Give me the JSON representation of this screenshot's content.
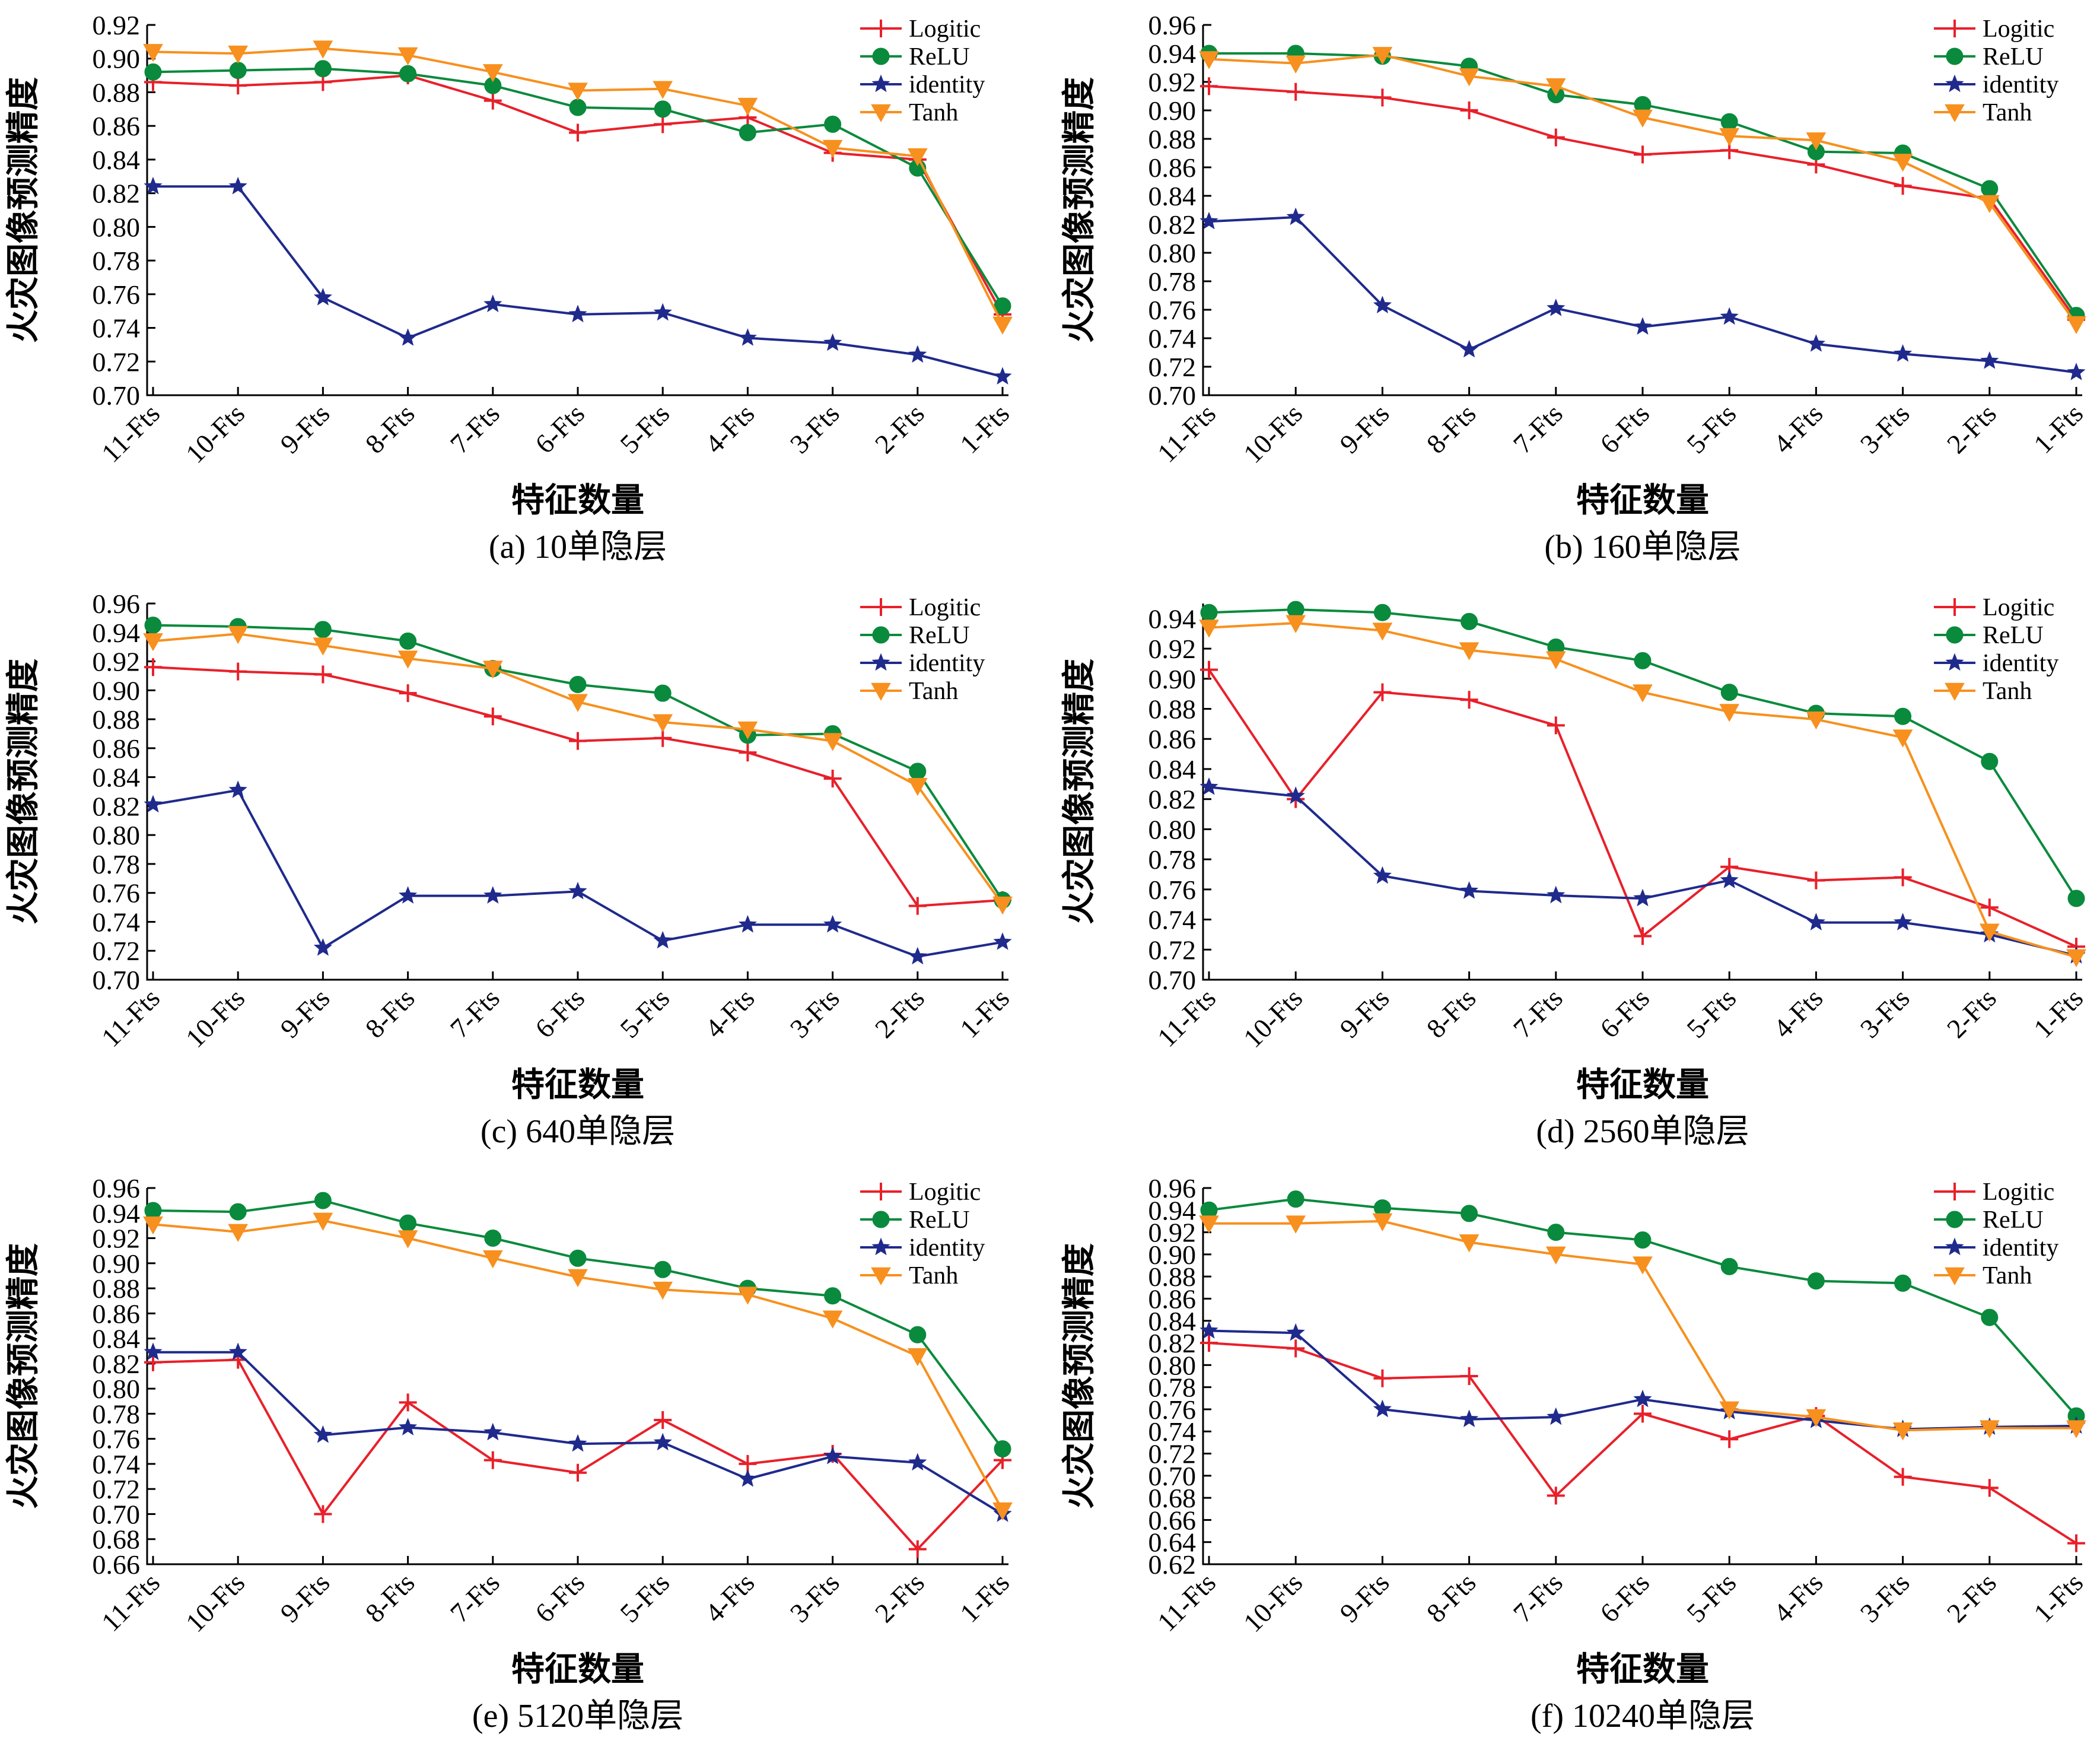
{
  "chart_data": [
    {
      "type": "line",
      "caption": "(a) 10单隐层",
      "xlabel": "特征数量",
      "ylabel": "火灾图像预测精度",
      "categories": [
        "11-Fts",
        "10-Fts",
        "9-Fts",
        "8-Fts",
        "7-Fts",
        "6-Fts",
        "5-Fts",
        "4-Fts",
        "3-Fts",
        "2-Fts",
        "1-Fts"
      ],
      "ylim": [
        0.7,
        0.92
      ],
      "yticks": [
        "0.70",
        "0.72",
        "0.74",
        "0.76",
        "0.78",
        "0.80",
        "0.82",
        "0.84",
        "0.86",
        "0.88",
        "0.90",
        "0.92"
      ],
      "legend_position": "top-right",
      "series": [
        {
          "name": "Logitic",
          "color": "#e8202a",
          "marker": "plus",
          "values": [
            0.886,
            0.884,
            0.886,
            0.89,
            0.875,
            0.856,
            0.861,
            0.865,
            0.844,
            0.84,
            0.748
          ]
        },
        {
          "name": "ReLU",
          "color": "#0a8a3c",
          "marker": "circle",
          "values": [
            0.892,
            0.893,
            0.894,
            0.891,
            0.884,
            0.871,
            0.87,
            0.856,
            0.861,
            0.835,
            0.753
          ]
        },
        {
          "name": "identity",
          "color": "#1f2a8c",
          "marker": "star",
          "values": [
            0.824,
            0.824,
            0.758,
            0.734,
            0.754,
            0.748,
            0.749,
            0.734,
            0.731,
            0.724,
            0.711
          ]
        },
        {
          "name": "Tanh",
          "color": "#f7901e",
          "marker": "triangle",
          "values": [
            0.904,
            0.903,
            0.906,
            0.902,
            0.892,
            0.881,
            0.882,
            0.872,
            0.847,
            0.842,
            0.742
          ]
        }
      ]
    },
    {
      "type": "line",
      "caption": "(b) 160单隐层",
      "xlabel": "特征数量",
      "ylabel": "火灾图像预测精度",
      "categories": [
        "11-Fts",
        "10-Fts",
        "9-Fts",
        "8-Fts",
        "7-Fts",
        "6-Fts",
        "5-Fts",
        "4-Fts",
        "3-Fts",
        "2-Fts",
        "1-Fts"
      ],
      "ylim": [
        0.7,
        0.96
      ],
      "yticks": [
        "0.70",
        "0.72",
        "0.74",
        "0.76",
        "0.78",
        "0.80",
        "0.82",
        "0.84",
        "0.86",
        "0.88",
        "0.90",
        "0.92",
        "0.94",
        "0.96"
      ],
      "legend_position": "top-right",
      "series": [
        {
          "name": "Logitic",
          "color": "#e8202a",
          "marker": "plus",
          "values": [
            0.917,
            0.913,
            0.909,
            0.9,
            0.881,
            0.869,
            0.872,
            0.862,
            0.847,
            0.838,
            0.753
          ]
        },
        {
          "name": "ReLU",
          "color": "#0a8a3c",
          "marker": "circle",
          "values": [
            0.94,
            0.94,
            0.938,
            0.931,
            0.911,
            0.904,
            0.892,
            0.871,
            0.87,
            0.845,
            0.756
          ]
        },
        {
          "name": "identity",
          "color": "#1f2a8c",
          "marker": "star",
          "values": [
            0.822,
            0.825,
            0.763,
            0.732,
            0.761,
            0.748,
            0.755,
            0.736,
            0.729,
            0.724,
            0.716
          ]
        },
        {
          "name": "Tanh",
          "color": "#f7901e",
          "marker": "triangle",
          "values": [
            0.936,
            0.933,
            0.939,
            0.924,
            0.917,
            0.895,
            0.882,
            0.879,
            0.864,
            0.835,
            0.75
          ]
        }
      ]
    },
    {
      "type": "line",
      "caption": "(c) 640单隐层",
      "xlabel": "特征数量",
      "ylabel": "火灾图像预测精度",
      "categories": [
        "11-Fts",
        "10-Fts",
        "9-Fts",
        "8-Fts",
        "7-Fts",
        "6-Fts",
        "5-Fts",
        "4-Fts",
        "3-Fts",
        "2-Fts",
        "1-Fts"
      ],
      "ylim": [
        0.7,
        0.96
      ],
      "yticks": [
        "0.70",
        "0.72",
        "0.74",
        "0.76",
        "0.78",
        "0.80",
        "0.82",
        "0.84",
        "0.86",
        "0.88",
        "0.90",
        "0.92",
        "0.94",
        "0.96"
      ],
      "legend_position": "top-right",
      "series": [
        {
          "name": "Logitic",
          "color": "#e8202a",
          "marker": "plus",
          "values": [
            0.916,
            0.913,
            0.911,
            0.898,
            0.882,
            0.865,
            0.867,
            0.857,
            0.839,
            0.751,
            0.755
          ]
        },
        {
          "name": "ReLU",
          "color": "#0a8a3c",
          "marker": "circle",
          "values": [
            0.945,
            0.944,
            0.942,
            0.934,
            0.915,
            0.904,
            0.898,
            0.869,
            0.87,
            0.844,
            0.755
          ]
        },
        {
          "name": "identity",
          "color": "#1f2a8c",
          "marker": "star",
          "values": [
            0.821,
            0.831,
            0.722,
            0.758,
            0.758,
            0.761,
            0.727,
            0.738,
            0.738,
            0.716,
            0.726
          ]
        },
        {
          "name": "Tanh",
          "color": "#f7901e",
          "marker": "triangle",
          "values": [
            0.934,
            0.939,
            0.931,
            0.922,
            0.915,
            0.892,
            0.878,
            0.873,
            0.865,
            0.834,
            0.752
          ]
        }
      ]
    },
    {
      "type": "line",
      "caption": "(d) 2560单隐层",
      "xlabel": "特征数量",
      "ylabel": "火灾图像预测精度",
      "categories": [
        "11-Fts",
        "10-Fts",
        "9-Fts",
        "8-Fts",
        "7-Fts",
        "6-Fts",
        "5-Fts",
        "4-Fts",
        "3-Fts",
        "2-Fts",
        "1-Fts"
      ],
      "ylim": [
        0.7,
        0.95
      ],
      "yticks": [
        "0.70",
        "0.72",
        "0.74",
        "0.76",
        "0.78",
        "0.80",
        "0.82",
        "0.84",
        "0.86",
        "0.88",
        "0.90",
        "0.92",
        "0.94"
      ],
      "legend_position": "top-right",
      "series": [
        {
          "name": "Logitic",
          "color": "#e8202a",
          "marker": "plus",
          "values": [
            0.906,
            0.82,
            0.891,
            0.886,
            0.869,
            0.729,
            0.775,
            0.766,
            0.768,
            0.748,
            0.722
          ]
        },
        {
          "name": "ReLU",
          "color": "#0a8a3c",
          "marker": "circle",
          "values": [
            0.944,
            0.946,
            0.944,
            0.938,
            0.921,
            0.912,
            0.891,
            0.877,
            0.875,
            0.845,
            0.754
          ]
        },
        {
          "name": "identity",
          "color": "#1f2a8c",
          "marker": "star",
          "values": [
            0.828,
            0.822,
            0.769,
            0.759,
            0.756,
            0.754,
            0.766,
            0.738,
            0.738,
            0.73,
            0.716
          ]
        },
        {
          "name": "Tanh",
          "color": "#f7901e",
          "marker": "triangle",
          "values": [
            0.934,
            0.937,
            0.932,
            0.919,
            0.913,
            0.891,
            0.878,
            0.873,
            0.861,
            0.732,
            0.715
          ]
        }
      ]
    },
    {
      "type": "line",
      "caption": "(e) 5120单隐层",
      "xlabel": "特征数量",
      "ylabel": "火灾图像预测精度",
      "categories": [
        "11-Fts",
        "10-Fts",
        "9-Fts",
        "8-Fts",
        "7-Fts",
        "6-Fts",
        "5-Fts",
        "4-Fts",
        "3-Fts",
        "2-Fts",
        "1-Fts"
      ],
      "ylim": [
        0.66,
        0.96
      ],
      "yticks": [
        "0.66",
        "0.68",
        "0.70",
        "0.72",
        "0.74",
        "0.76",
        "0.78",
        "0.80",
        "0.82",
        "0.84",
        "0.86",
        "0.88",
        "0.90",
        "0.92",
        "0.94",
        "0.96"
      ],
      "legend_position": "top-right",
      "series": [
        {
          "name": "Logitic",
          "color": "#e8202a",
          "marker": "plus",
          "values": [
            0.821,
            0.823,
            0.7,
            0.789,
            0.743,
            0.733,
            0.775,
            0.74,
            0.748,
            0.672,
            0.743
          ]
        },
        {
          "name": "ReLU",
          "color": "#0a8a3c",
          "marker": "circle",
          "values": [
            0.942,
            0.941,
            0.95,
            0.932,
            0.92,
            0.904,
            0.895,
            0.88,
            0.874,
            0.843,
            0.752
          ]
        },
        {
          "name": "identity",
          "color": "#1f2a8c",
          "marker": "star",
          "values": [
            0.829,
            0.829,
            0.763,
            0.769,
            0.765,
            0.756,
            0.757,
            0.728,
            0.746,
            0.741,
            0.7
          ]
        },
        {
          "name": "Tanh",
          "color": "#f7901e",
          "marker": "triangle",
          "values": [
            0.931,
            0.925,
            0.934,
            0.92,
            0.904,
            0.889,
            0.879,
            0.875,
            0.856,
            0.826,
            0.703
          ]
        }
      ]
    },
    {
      "type": "line",
      "caption": "(f) 10240单隐层",
      "xlabel": "特征数量",
      "ylabel": "火灾图像预测精度",
      "categories": [
        "11-Fts",
        "10-Fts",
        "9-Fts",
        "8-Fts",
        "7-Fts",
        "6-Fts",
        "5-Fts",
        "4-Fts",
        "3-Fts",
        "2-Fts",
        "1-Fts"
      ],
      "ylim": [
        0.62,
        0.96
      ],
      "yticks": [
        "0.62",
        "0.64",
        "0.66",
        "0.68",
        "0.70",
        "0.72",
        "0.74",
        "0.76",
        "0.78",
        "0.80",
        "0.82",
        "0.84",
        "0.86",
        "0.88",
        "0.90",
        "0.92",
        "0.94",
        "0.96"
      ],
      "legend_position": "top-right",
      "series": [
        {
          "name": "Logitic",
          "color": "#e8202a",
          "marker": "plus",
          "values": [
            0.82,
            0.815,
            0.788,
            0.79,
            0.682,
            0.756,
            0.733,
            0.754,
            0.699,
            0.689,
            0.639
          ]
        },
        {
          "name": "ReLU",
          "color": "#0a8a3c",
          "marker": "circle",
          "values": [
            0.94,
            0.95,
            0.942,
            0.937,
            0.92,
            0.913,
            0.889,
            0.876,
            0.874,
            0.843,
            0.754
          ]
        },
        {
          "name": "identity",
          "color": "#1f2a8c",
          "marker": "star",
          "values": [
            0.831,
            0.829,
            0.76,
            0.751,
            0.753,
            0.769,
            0.758,
            0.75,
            0.742,
            0.744,
            0.745
          ]
        },
        {
          "name": "Tanh",
          "color": "#f7901e",
          "marker": "triangle",
          "values": [
            0.928,
            0.928,
            0.93,
            0.911,
            0.9,
            0.891,
            0.76,
            0.753,
            0.741,
            0.743,
            0.743
          ]
        }
      ]
    }
  ]
}
